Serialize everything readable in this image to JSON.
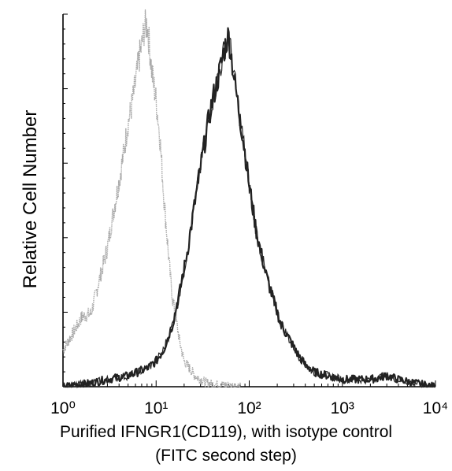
{
  "chart_data": {
    "type": "line",
    "title": "",
    "xlabel": "Purified IFNGR1(CD119), with isotype control",
    "xlabel_line2": "(FITC second step)",
    "ylabel": "Relative Cell Number",
    "x_scale": "log",
    "xlim": [
      1,
      10000
    ],
    "ylim": [
      0,
      1
    ],
    "x_tick_labels": [
      "10⁰",
      "10¹",
      "10²",
      "10³",
      "10⁴"
    ],
    "y_tick_labels": [],
    "grid": false,
    "legend": "none",
    "series": [
      {
        "color": "#a8a8a8",
        "style": "light-gray-noisy",
        "x": [
          1.0,
          1.3,
          1.6,
          2.0,
          2.5,
          3.0,
          3.5,
          4.0,
          4.5,
          5.0,
          5.5,
          6.0,
          6.5,
          7.0,
          7.5,
          8.0,
          8.5,
          9.0,
          10.0,
          11.0,
          12.0,
          13.0,
          14.0,
          15.0,
          16.0,
          18.0,
          20.0,
          23.0,
          26.0,
          30.0,
          35.0,
          40.0,
          50.0,
          60.0,
          80.0
        ],
        "y": [
          0.1,
          0.15,
          0.19,
          0.2,
          0.3,
          0.38,
          0.48,
          0.56,
          0.64,
          0.72,
          0.77,
          0.83,
          0.89,
          0.93,
          0.98,
          0.99,
          0.93,
          0.86,
          0.78,
          0.68,
          0.53,
          0.42,
          0.32,
          0.24,
          0.2,
          0.12,
          0.07,
          0.05,
          0.03,
          0.02,
          0.01,
          0.008,
          0.005,
          0.003,
          0.0
        ]
      },
      {
        "color": "#222222",
        "style": "dark-noisy",
        "x": [
          1.0,
          2.0,
          3.0,
          5.0,
          8.0,
          10.0,
          12.0,
          15.0,
          18.0,
          22.0,
          26.0,
          30.0,
          35.0,
          40.0,
          45.0,
          50.0,
          55.0,
          60.0,
          70.0,
          80.0,
          90.0,
          100.0,
          120.0,
          150.0,
          180.0,
          220.0,
          270.0,
          330.0,
          400.0,
          500.0,
          700.0,
          1000.0,
          1500.0,
          2000.0,
          3000.0,
          4000.0,
          6000.0,
          10000.0
        ],
        "y": [
          0.0,
          0.01,
          0.02,
          0.03,
          0.05,
          0.07,
          0.1,
          0.17,
          0.26,
          0.38,
          0.5,
          0.6,
          0.7,
          0.78,
          0.83,
          0.88,
          0.93,
          0.96,
          0.83,
          0.73,
          0.64,
          0.55,
          0.42,
          0.31,
          0.24,
          0.17,
          0.13,
          0.09,
          0.06,
          0.04,
          0.03,
          0.02,
          0.02,
          0.02,
          0.03,
          0.02,
          0.01,
          0.0
        ]
      }
    ]
  }
}
